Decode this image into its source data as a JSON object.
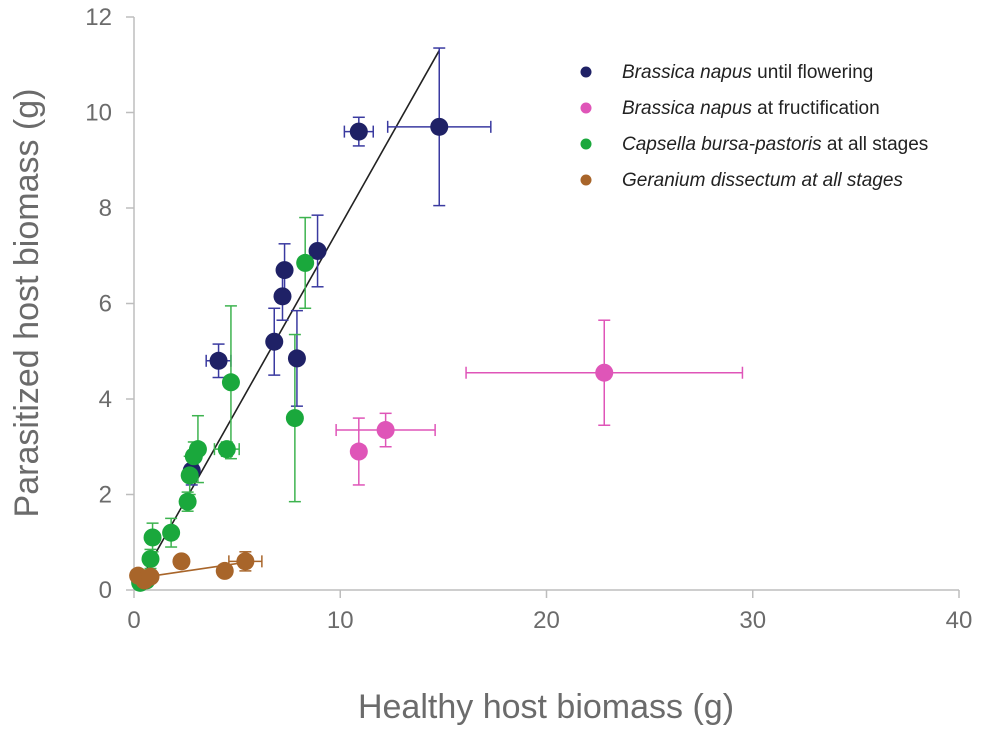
{
  "chart_data": {
    "type": "scatter",
    "xlabel": "Healthy host biomass (g)",
    "ylabel": "Parasitized host biomass (g)",
    "xlim": [
      0,
      40
    ],
    "ylim": [
      0,
      12
    ],
    "x_ticks": [
      0,
      10,
      20,
      30,
      40
    ],
    "y_ticks": [
      0,
      2,
      4,
      6,
      8,
      10,
      12
    ],
    "grid": false,
    "legend_position": "top-right",
    "series": [
      {
        "name": "Brassica napus until flowering",
        "legend_italic": "Brassica napus",
        "legend_plain": " until flowering",
        "color": "#1f2166",
        "bar_color": "#3a3aa0",
        "points": [
          {
            "x": 0.3,
            "y": 0.2
          },
          {
            "x": 2.8,
            "y": 2.5,
            "yerr": 0.3,
            "xerr": 0.3
          },
          {
            "x": 4.1,
            "y": 4.8,
            "yerr": 0.35,
            "xerr": 0.6
          },
          {
            "x": 6.8,
            "y": 5.2,
            "yerr": 0.7
          },
          {
            "x": 7.2,
            "y": 6.15,
            "yerr": 0.5
          },
          {
            "x": 7.3,
            "y": 6.7,
            "yerr": 0.55
          },
          {
            "x": 7.9,
            "y": 4.85,
            "yerr": 1.0
          },
          {
            "x": 8.9,
            "y": 7.1,
            "yerr": 0.75
          },
          {
            "x": 10.9,
            "y": 9.6,
            "yerr": 0.3,
            "xerr": 0.7
          },
          {
            "x": 14.8,
            "y": 9.7,
            "yerr": 1.65,
            "xerr": 2.5
          }
        ]
      },
      {
        "name": "Brassica napus at fructification",
        "legend_italic": "Brassica napus",
        "legend_plain": " at fructification",
        "color": "#df55b8",
        "bar_color": "#df55b8",
        "points": [
          {
            "x": 10.9,
            "y": 2.9,
            "yerr": 0.7,
            "xerr": 0.3
          },
          {
            "x": 12.2,
            "y": 3.35,
            "yerr": 0.35,
            "xerr": 2.4
          },
          {
            "x": 22.8,
            "y": 4.55,
            "yerr": 1.1,
            "xerr": 6.7
          }
        ]
      },
      {
        "name": "Capsella bursa-pastoris at all stages",
        "legend_italic": "Capsella bursa-pastoris",
        "legend_plain": " at all stages",
        "color": "#1aa83c",
        "bar_color": "#3db34f",
        "points": [
          {
            "x": 0.3,
            "y": 0.15
          },
          {
            "x": 0.6,
            "y": 0.2
          },
          {
            "x": 0.8,
            "y": 0.65,
            "yerr": 0.2
          },
          {
            "x": 0.9,
            "y": 1.1,
            "yerr": 0.3
          },
          {
            "x": 1.8,
            "y": 1.2,
            "yerr": 0.3
          },
          {
            "x": 2.6,
            "y": 1.85,
            "yerr": 0.2
          },
          {
            "x": 2.7,
            "y": 2.4,
            "yerr": 0.4
          },
          {
            "x": 2.9,
            "y": 2.8,
            "yerr": 0.3
          },
          {
            "x": 3.1,
            "y": 2.95,
            "yerr": 0.7
          },
          {
            "x": 4.5,
            "y": 2.95,
            "yerr": 0.15,
            "xerr": 0.6
          },
          {
            "x": 4.7,
            "y": 4.35,
            "yerr": 1.6
          },
          {
            "x": 7.8,
            "y": 3.6,
            "yerr": 1.75
          },
          {
            "x": 8.3,
            "y": 6.85,
            "yerr": 0.95
          }
        ]
      },
      {
        "name": "Geranium dissectum at all stages",
        "legend_italic": "Geranium dissectum at all stages",
        "legend_plain": "",
        "color": "#a8652a",
        "bar_color": "#a8652a",
        "points": [
          {
            "x": 0.2,
            "y": 0.3
          },
          {
            "x": 0.5,
            "y": 0.2
          },
          {
            "x": 0.8,
            "y": 0.28
          },
          {
            "x": 2.3,
            "y": 0.6
          },
          {
            "x": 4.4,
            "y": 0.4
          },
          {
            "x": 5.4,
            "y": 0.6,
            "yerr": 0.2,
            "xerr": 0.8
          }
        ]
      }
    ],
    "trendlines": [
      {
        "series": "Brassica napus until flowering",
        "color": "#222222",
        "x": [
          0.3,
          14.8
        ],
        "y": [
          0.2,
          11.3
        ]
      },
      {
        "series": "Geranium dissectum at all stages",
        "color": "#a8652a",
        "x": [
          0.2,
          5.4
        ],
        "y": [
          0.25,
          0.58
        ]
      }
    ]
  }
}
